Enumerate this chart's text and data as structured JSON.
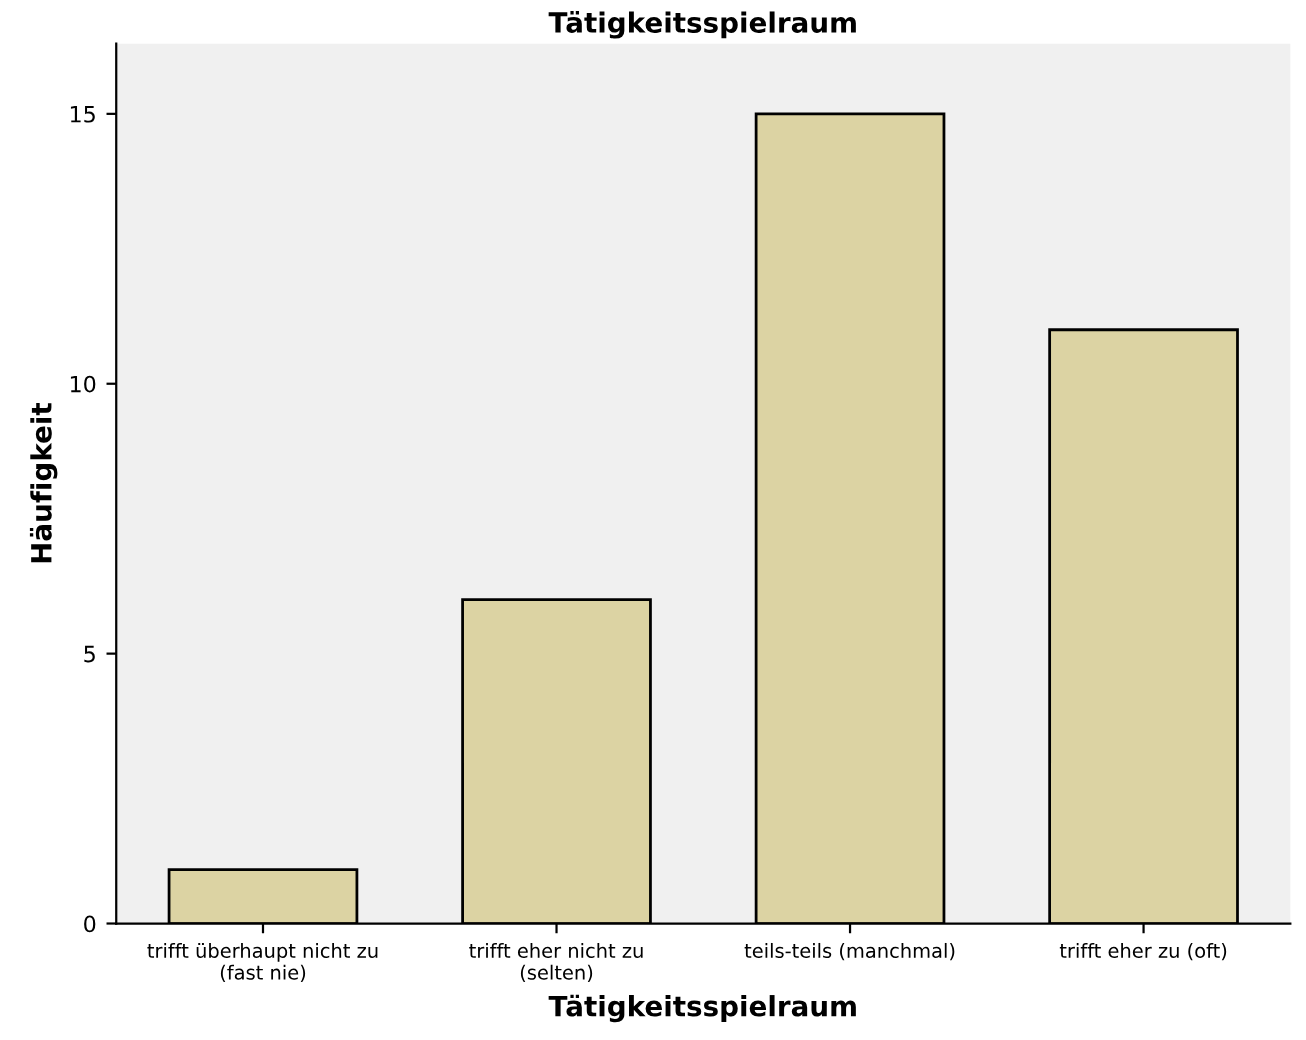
{
  "chart_data": {
    "type": "bar",
    "title": "Tätigkeitsspielraum",
    "xlabel": "Tätigkeitsspielraum",
    "ylabel": "Häufigkeit",
    "categories": [
      "trifft überhaupt nicht zu\n(fast nie)",
      "trifft eher nicht zu\n(selten)",
      "teils-teils (manchmal)",
      "trifft eher zu (oft)"
    ],
    "values": [
      1,
      6,
      15,
      11
    ],
    "color": "#dcd3a3",
    "ylim": [
      0,
      16.3
    ],
    "yticks": [
      0,
      5,
      10,
      15
    ],
    "grid": false,
    "legend": false
  }
}
